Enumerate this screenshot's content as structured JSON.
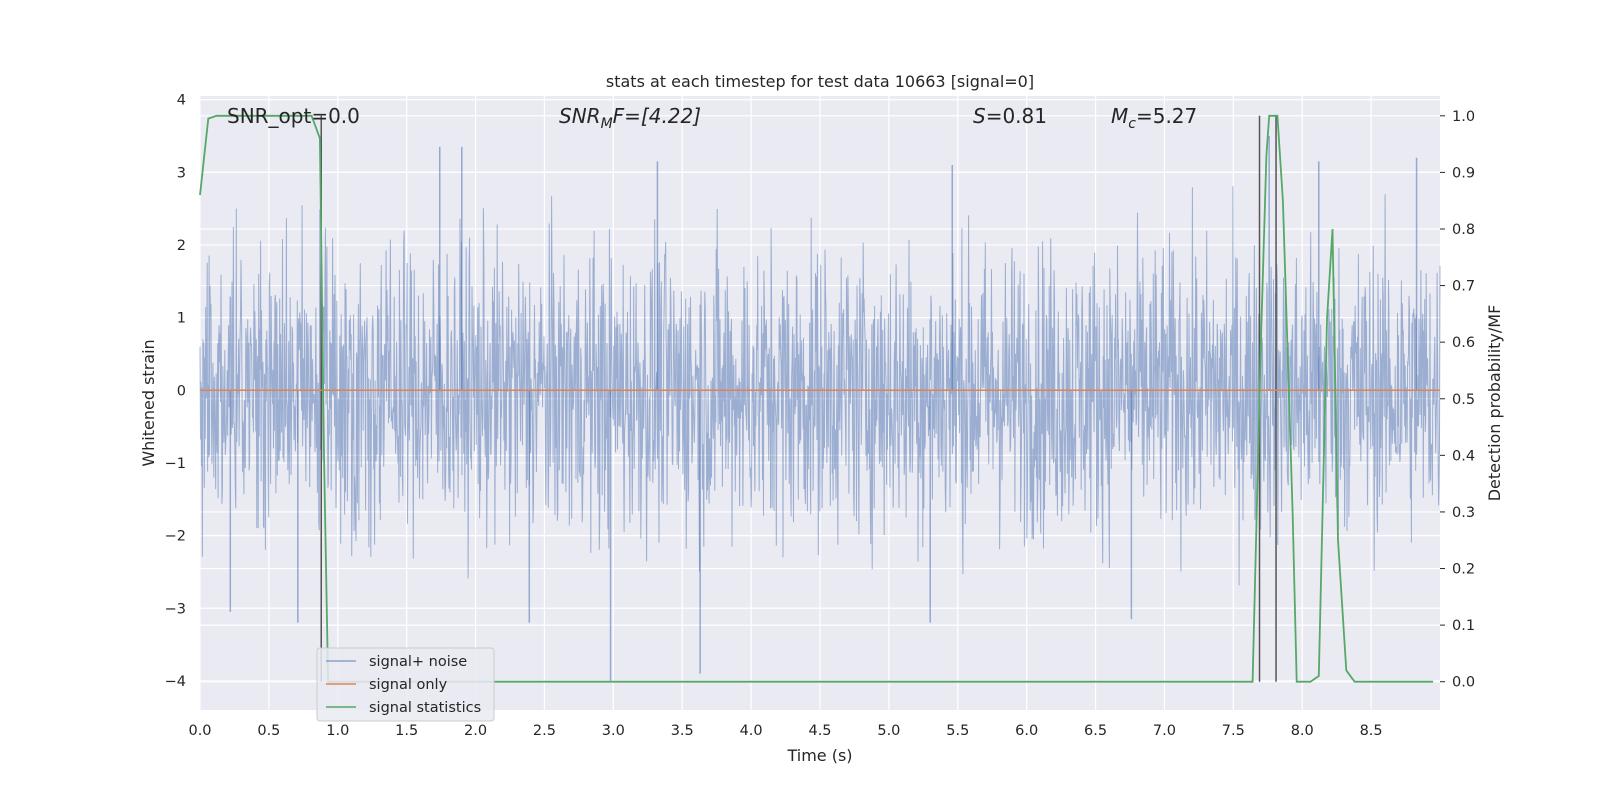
{
  "chart_data": {
    "type": "line",
    "title": "stats at each timestep for test data 10663 [signal=0]",
    "xlabel": "Time (s)",
    "ylabel": "Whitened strain",
    "y2label": "Detection probability/MF",
    "xlim": [
      0,
      9.0
    ],
    "ylim": [
      -4.4,
      4.05
    ],
    "y2lim": [
      -0.05,
      1.035
    ],
    "grid": true,
    "legend_position": "lower-left",
    "x_ticks": [
      "0.0",
      "0.5",
      "1.0",
      "1.5",
      "2.0",
      "2.5",
      "3.0",
      "3.5",
      "4.0",
      "4.5",
      "5.0",
      "5.5",
      "6.0",
      "6.5",
      "7.0",
      "7.5",
      "8.0",
      "8.5"
    ],
    "y_ticks": [
      "4",
      "3",
      "2",
      "1",
      "0",
      "−1",
      "−2",
      "−3",
      "−4"
    ],
    "y2_ticks": [
      "1.0",
      "0.9",
      "0.8",
      "0.7",
      "0.6",
      "0.5",
      "0.4",
      "0.3",
      "0.2",
      "0.1",
      "0.0"
    ],
    "annotations": {
      "snr_opt": "SNR_opt=0.0",
      "snr_mf_base": "SNR",
      "snr_mf_sub": "M",
      "snr_mf_rest": "F=[4.22]",
      "s_label": "S",
      "s_value": "=0.81",
      "mc_base": "M",
      "mc_sub": "c",
      "mc_value": "=5.27"
    },
    "vertical_markers_x": [
      0.88,
      7.69,
      7.81
    ],
    "noise_envelope": {
      "typical_abs_amplitude": 1.6,
      "peak_samples": [
        {
          "x": 0.22,
          "y": -3.05
        },
        {
          "x": 0.71,
          "y": -3.2
        },
        {
          "x": 1.74,
          "y": 3.35
        },
        {
          "x": 1.9,
          "y": 3.35
        },
        {
          "x": 2.39,
          "y": -3.2
        },
        {
          "x": 2.98,
          "y": -4.0
        },
        {
          "x": 3.32,
          "y": 3.15
        },
        {
          "x": 3.63,
          "y": -3.9
        },
        {
          "x": 5.3,
          "y": -3.2
        },
        {
          "x": 5.46,
          "y": 3.1
        },
        {
          "x": 6.76,
          "y": -3.15
        },
        {
          "x": 7.76,
          "y": 3.5
        },
        {
          "x": 8.12,
          "y": 3.15
        },
        {
          "x": 8.83,
          "y": 3.2
        }
      ]
    },
    "series": [
      {
        "name": "signal+ noise",
        "color": "#4c72b0",
        "opacity": 0.5
      },
      {
        "name": "signal only",
        "color": "#dd8452",
        "values_constant": 0
      },
      {
        "name": "signal statistics",
        "color": "#55a868",
        "axis": "right",
        "x": [
          0.0,
          0.06,
          0.12,
          0.25,
          0.5,
          0.75,
          0.81,
          0.87,
          0.9,
          0.93,
          1.0,
          2.0,
          4.0,
          6.0,
          7.5,
          7.64,
          7.7,
          7.74,
          7.76,
          7.82,
          7.86,
          7.93,
          7.96,
          8.0,
          8.06,
          8.12,
          8.18,
          8.22,
          8.26,
          8.32,
          8.38,
          8.5,
          8.95
        ],
        "y": [
          0.86,
          0.995,
          1.0,
          1.0,
          1.0,
          1.0,
          1.0,
          0.96,
          0.4,
          0.0,
          0.0,
          0.0,
          0.0,
          0.0,
          0.0,
          0.0,
          0.6,
          0.93,
          1.0,
          1.0,
          0.85,
          0.3,
          0.0,
          0.0,
          0.0,
          0.01,
          0.64,
          0.8,
          0.25,
          0.02,
          0.0,
          0.0,
          0.0
        ]
      }
    ]
  }
}
